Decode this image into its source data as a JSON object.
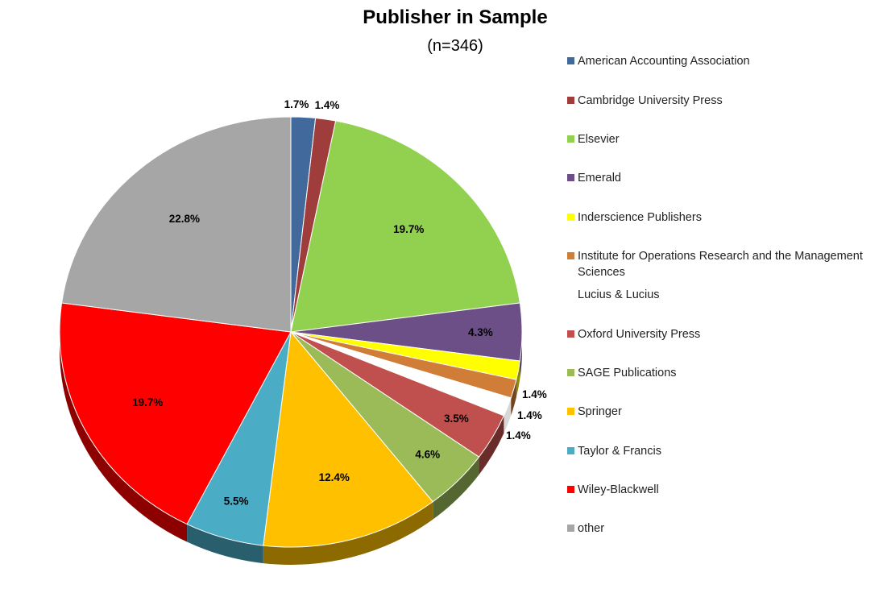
{
  "chart_data": {
    "type": "pie",
    "title": "Publisher in Sample",
    "subtitle": "(n=346)",
    "legend_position": "right",
    "slices": [
      {
        "name": "American Accounting Association",
        "value": 1.7,
        "label": "1.7%",
        "color": "#41699b"
      },
      {
        "name": "Cambridge University Press",
        "value": 1.4,
        "label": "1.4%",
        "color": "#9e3d3b"
      },
      {
        "name": "Elsevier",
        "value": 19.7,
        "label": "19.7%",
        "color": "#92d050"
      },
      {
        "name": "Emerald",
        "value": 4.3,
        "label": "4.3%",
        "color": "#6b4f86"
      },
      {
        "name": "Inderscience Publishers",
        "value": 1.4,
        "label": "1.4%",
        "color": "#ffff00"
      },
      {
        "name": "Institute for Operations Research and the Management Sciences",
        "value": 1.4,
        "label": "1.4%",
        "color": "#d07e37"
      },
      {
        "name": "Lucius & Lucius",
        "value": 1.4,
        "label": "1.4%",
        "color": "#ffffff"
      },
      {
        "name": "Oxford University Press",
        "value": 3.5,
        "label": "3.5%",
        "color": "#c0504d"
      },
      {
        "name": "SAGE Publications",
        "value": 4.6,
        "label": "4.6%",
        "color": "#9bbb59"
      },
      {
        "name": "Springer",
        "value": 12.4,
        "label": "12.4%",
        "color": "#ffc000"
      },
      {
        "name": "Taylor & Francis",
        "value": 5.5,
        "label": "5.5%",
        "color": "#4bacc6"
      },
      {
        "name": "Wiley-Blackwell",
        "value": 19.7,
        "label": "19.7%",
        "color": "#ff0000"
      },
      {
        "name": "other",
        "value": 22.8,
        "label": "22.8%",
        "color": "#a6a6a6"
      }
    ]
  }
}
